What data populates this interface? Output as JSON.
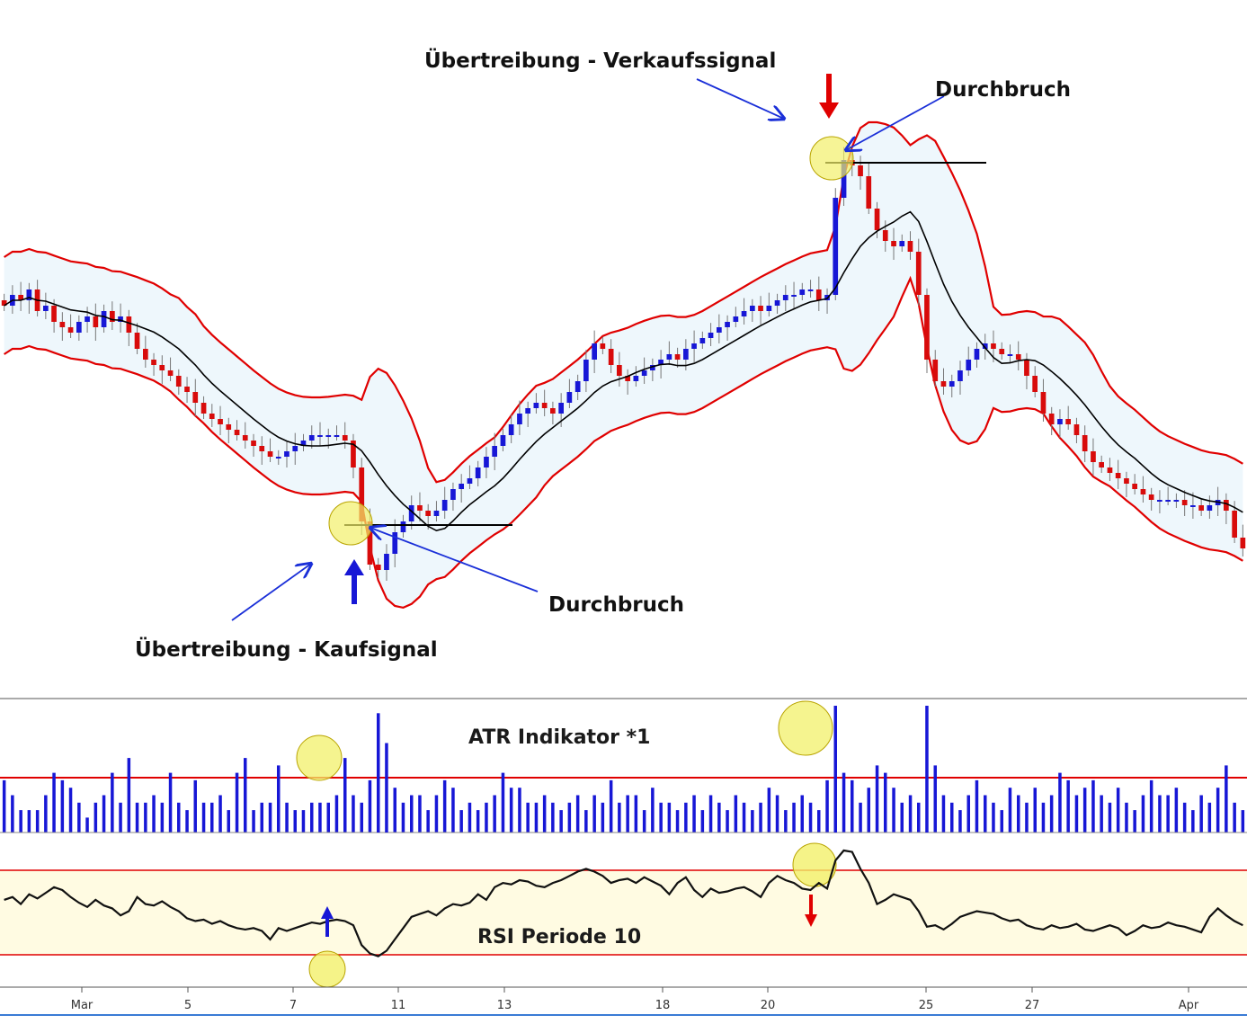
{
  "colors": {
    "band": "#e00000",
    "band_fill": "#eef7fc",
    "bull": "#1717d6",
    "bear": "#d80b0b",
    "sma": "#000000",
    "arrow_annot": "#1a2fd8",
    "highlight": "#f2f06a",
    "rsi_fill": "#fffbe2",
    "atr_bar": "#1717d6",
    "guide": "#e00000"
  },
  "annotations": {
    "sell_exaggeration": "Übertreibung - Verkaufssignal",
    "sell_breakout": "Durchbruch",
    "buy_breakout": "Durchbruch",
    "buy_exaggeration": "Übertreibung - Kaufsignal"
  },
  "chart_data": [
    {
      "type": "candlestick",
      "title": "",
      "overlays": [
        "Bollinger Bands",
        "moving average"
      ],
      "bands_shaded": true,
      "signals": [
        {
          "label": "Übertreibung - Kaufsignal",
          "direction": "buy"
        },
        {
          "label": "Übertreibung - Verkaufssignal",
          "direction": "sell"
        }
      ],
      "close_series": [
        100,
        102,
        101,
        103,
        99,
        100,
        97,
        96,
        95,
        97,
        98,
        96,
        99,
        97,
        98,
        95,
        92,
        90,
        89,
        88,
        87,
        85,
        84,
        82,
        80,
        79,
        78,
        77,
        76,
        75,
        74,
        73,
        72,
        72,
        73,
        74,
        75,
        76,
        76,
        76,
        76,
        75,
        70,
        60,
        52,
        51,
        54,
        58,
        60,
        63,
        62,
        61,
        62,
        64,
        66,
        67,
        68,
        70,
        72,
        74,
        76,
        78,
        80,
        81,
        82,
        81,
        80,
        82,
        84,
        86,
        90,
        93,
        92,
        89,
        87,
        86,
        87,
        88,
        89,
        90,
        91,
        90,
        92,
        93,
        94,
        95,
        96,
        97,
        98,
        99,
        100,
        99,
        100,
        101,
        102,
        102,
        103,
        103,
        101,
        102,
        120,
        127,
        126,
        124,
        118,
        114,
        112,
        111,
        112,
        110,
        102,
        90,
        86,
        85,
        86,
        88,
        90,
        92,
        93,
        92,
        91,
        91,
        90,
        87,
        84,
        80,
        78,
        79,
        78,
        76,
        73,
        71,
        70,
        69,
        68,
        67,
        66,
        65,
        64,
        64,
        64,
        64,
        63,
        63,
        62,
        63,
        64,
        62,
        57,
        55
      ]
    },
    {
      "type": "bar",
      "title": "ATR Indikator *1",
      "threshold_lines": 1,
      "values": [
        7,
        5,
        3,
        3,
        3,
        5,
        8,
        7,
        6,
        4,
        2,
        4,
        5,
        8,
        4,
        10,
        4,
        4,
        5,
        4,
        8,
        4,
        3,
        7,
        4,
        4,
        5,
        3,
        8,
        10,
        3,
        4,
        4,
        9,
        4,
        3,
        3,
        4,
        4,
        4,
        5,
        10,
        5,
        4,
        7,
        16,
        12,
        6,
        4,
        5,
        5,
        3,
        5,
        7,
        6,
        3,
        4,
        3,
        4,
        5,
        8,
        6,
        6,
        4,
        4,
        5,
        4,
        3,
        4,
        5,
        3,
        5,
        4,
        7,
        4,
        5,
        5,
        3,
        6,
        4,
        4,
        3,
        4,
        5,
        3,
        5,
        4,
        3,
        5,
        4,
        3,
        4,
        6,
        5,
        3,
        4,
        5,
        4,
        3,
        7,
        17,
        8,
        7,
        4,
        6,
        9,
        8,
        6,
        4,
        5,
        4,
        17,
        9,
        5,
        4,
        3,
        5,
        7,
        5,
        4,
        3,
        6,
        5,
        4,
        6,
        4,
        5,
        8,
        7,
        5,
        6,
        7,
        5,
        4,
        6,
        4,
        3,
        5,
        7,
        5,
        5,
        6,
        4,
        3,
        5,
        4,
        6,
        9,
        4,
        3
      ]
    },
    {
      "type": "line",
      "title": "RSI Periode 10",
      "threshold_lines": 2,
      "x_tick_labels": [
        "Mar",
        "5",
        "7",
        "11",
        "13",
        "18",
        "20",
        "25",
        "27",
        "Apr"
      ],
      "values": [
        58,
        60,
        55,
        62,
        59,
        63,
        67,
        65,
        60,
        56,
        53,
        58,
        54,
        52,
        47,
        50,
        60,
        55,
        54,
        57,
        53,
        50,
        45,
        43,
        44,
        41,
        43,
        40,
        38,
        37,
        38,
        36,
        30,
        38,
        36,
        38,
        40,
        42,
        41,
        43,
        44,
        43,
        40,
        26,
        20,
        18,
        22,
        30,
        38,
        46,
        48,
        50,
        47,
        52,
        55,
        54,
        56,
        62,
        58,
        67,
        70,
        69,
        72,
        71,
        68,
        67,
        70,
        72,
        75,
        78,
        80,
        78,
        75,
        70,
        72,
        73,
        70,
        74,
        71,
        68,
        62,
        70,
        74,
        65,
        60,
        66,
        63,
        64,
        66,
        67,
        64,
        60,
        70,
        75,
        72,
        70,
        66,
        65,
        70,
        66,
        86,
        93,
        92,
        80,
        70,
        55,
        58,
        62,
        60,
        58,
        50,
        39,
        40,
        37,
        41,
        46,
        48,
        50,
        49,
        48,
        45,
        43,
        44,
        40,
        38,
        37,
        40,
        38,
        39,
        41,
        37,
        36,
        38,
        40,
        38,
        33,
        36,
        40,
        38,
        39,
        42,
        40,
        39,
        37,
        35,
        46,
        52,
        47,
        43,
        40
      ]
    }
  ]
}
